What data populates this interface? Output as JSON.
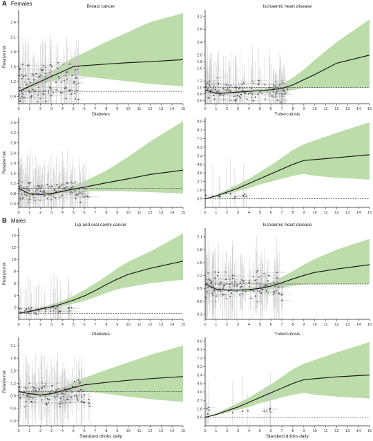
{
  "figure": {
    "sections": [
      {
        "letter": "A",
        "label": "Females"
      },
      {
        "letter": "B",
        "label": "Males"
      }
    ],
    "colors": {
      "ci_band": "#b5d8a0",
      "curve": "#1a1a1a",
      "reference_line": "#555555",
      "points": "#555555",
      "whiskers": "#c8c8c8"
    }
  },
  "chart_data": [
    {
      "type": "line",
      "title": "Breast cancer",
      "ylabel": "Relative risk",
      "xlabel": "",
      "xlim": [
        0,
        15
      ],
      "ylim": [
        0.75,
        2.65
      ],
      "xticks": [
        "0",
        "1",
        "2",
        "3",
        "4",
        "5",
        "6",
        "7",
        "8",
        "9",
        "10",
        "11",
        "12",
        "13",
        "14",
        "15"
      ],
      "yticks": [
        "0.9",
        "1.2",
        "1.5",
        "1.8",
        "2.1",
        "2.4"
      ],
      "ytick_values": [
        0.9,
        1.2,
        1.5,
        1.8,
        2.1,
        2.4
      ],
      "reference": 1.0,
      "curve_x": [
        0,
        1,
        2,
        3,
        4,
        5,
        6,
        8,
        10,
        12,
        15
      ],
      "curve_y": [
        1.0,
        1.1,
        1.2,
        1.3,
        1.4,
        1.5,
        1.52,
        1.55,
        1.58,
        1.6,
        1.64
      ],
      "ci_lower": [
        1.0,
        1.05,
        1.13,
        1.2,
        1.27,
        1.33,
        1.3,
        1.25,
        1.2,
        1.15,
        1.1
      ],
      "ci_upper": [
        1.0,
        1.15,
        1.27,
        1.4,
        1.55,
        1.68,
        1.78,
        2.0,
        2.2,
        2.4,
        2.58
      ],
      "scatter_cluster": {
        "x_max": 5.5,
        "y_center": 1.15,
        "y_spread": 0.45,
        "n": 130
      }
    },
    {
      "type": "line",
      "title": "Ischaemic heart disease",
      "ylabel": "",
      "xlabel": "",
      "xlim": [
        0,
        15
      ],
      "ylim": [
        0.5,
        3.4
      ],
      "xticks": [
        "0",
        "1",
        "2",
        "3",
        "4",
        "5",
        "6",
        "7",
        "8",
        "9",
        "10",
        "11",
        "12",
        "13",
        "14",
        "15"
      ],
      "yticks": [
        "0.6",
        "0.8",
        "1.0",
        "1.2",
        "1.6",
        "1.8",
        "2.0",
        "2.4",
        "2.8",
        "3.2"
      ],
      "ytick_values": [
        0.6,
        0.8,
        1.0,
        1.2,
        1.6,
        1.8,
        2.0,
        2.4,
        2.8,
        3.2
      ],
      "reference": 1.0,
      "curve_x": [
        0,
        1,
        2,
        3,
        4,
        5,
        6,
        7,
        8,
        9,
        10,
        12,
        15
      ],
      "curve_y": [
        0.92,
        0.82,
        0.83,
        0.86,
        0.88,
        0.9,
        0.93,
        0.97,
        1.08,
        1.24,
        1.4,
        1.75,
        2.0
      ],
      "ci_lower": [
        0.92,
        0.8,
        0.8,
        0.82,
        0.84,
        0.86,
        0.87,
        0.88,
        0.92,
        0.98,
        1.0,
        1.0,
        1.0
      ],
      "ci_upper": [
        0.92,
        0.85,
        0.87,
        0.9,
        0.93,
        0.96,
        1.0,
        1.1,
        1.3,
        1.55,
        1.85,
        2.4,
        3.1
      ],
      "scatter_cluster": {
        "x_max": 7.5,
        "y_center": 0.9,
        "y_spread": 0.35,
        "n": 150
      }
    },
    {
      "type": "line",
      "title": "Diabetes",
      "ylabel": "Relative risk",
      "xlabel": "",
      "xlim": [
        0,
        15
      ],
      "ylim": [
        0.25,
        3.8
      ],
      "xticks": [
        "0",
        "1",
        "2",
        "3",
        "4",
        "5",
        "6",
        "7",
        "8",
        "9",
        "10",
        "11",
        "12",
        "13",
        "14",
        "15"
      ],
      "yticks": [
        "0.4",
        "0.8",
        "1.2",
        "1.6",
        "2.0",
        "2.4",
        "2.8",
        "3.2",
        "3.6"
      ],
      "ytick_values": [
        0.4,
        0.8,
        1.2,
        1.6,
        2.0,
        2.4,
        2.8,
        3.2,
        3.6
      ],
      "reference": 1.0,
      "curve_x": [
        0,
        1,
        2,
        3,
        4,
        5,
        6,
        8,
        10,
        12,
        15
      ],
      "curve_y": [
        1.0,
        0.78,
        0.76,
        0.8,
        0.88,
        0.97,
        1.05,
        1.22,
        1.38,
        1.55,
        1.72
      ],
      "ci_lower": [
        1.0,
        0.72,
        0.7,
        0.74,
        0.8,
        0.85,
        0.88,
        0.9,
        0.88,
        0.85,
        0.8
      ],
      "ci_upper": [
        1.0,
        0.85,
        0.83,
        0.88,
        0.98,
        1.12,
        1.28,
        1.7,
        2.25,
        2.85,
        3.65
      ],
      "scatter_cluster": {
        "x_max": 6.5,
        "y_center": 0.85,
        "y_spread": 0.4,
        "n": 140
      }
    },
    {
      "type": "line",
      "title": "Tuberculosis",
      "ylabel": "",
      "xlabel": "",
      "xlim": [
        0,
        15
      ],
      "ylim": [
        0,
        9.4
      ],
      "xticks": [
        "0",
        "1",
        "2",
        "3",
        "4",
        "5",
        "6",
        "7",
        "8",
        "9",
        "10",
        "11",
        "12",
        "13",
        "14",
        "15"
      ],
      "yticks": [
        "0.9",
        "1.8",
        "2.7",
        "3.6",
        "4.5",
        "5.4",
        "6.3",
        "7.2",
        "8.1",
        "9.0"
      ],
      "ytick_values": [
        0.9,
        1.8,
        2.7,
        3.6,
        4.5,
        5.4,
        6.3,
        7.2,
        8.1,
        9.0
      ],
      "reference": 0.9,
      "curve_x": [
        0,
        1,
        2,
        3,
        4,
        5,
        6,
        7,
        8,
        9,
        10,
        12,
        15
      ],
      "curve_y": [
        0.9,
        1.2,
        1.6,
        2.0,
        2.5,
        3.0,
        3.5,
        4.0,
        4.5,
        4.9,
        5.0,
        5.2,
        5.5
      ],
      "ci_lower": [
        0.9,
        1.1,
        1.4,
        1.7,
        2.0,
        2.4,
        2.7,
        3.0,
        3.3,
        3.5,
        3.3,
        3.1,
        2.9
      ],
      "ci_upper": [
        0.9,
        1.3,
        1.85,
        2.4,
        3.0,
        3.7,
        4.4,
        5.2,
        6.0,
        6.6,
        7.0,
        7.8,
        8.9
      ],
      "scatter_cluster": {
        "x_max": 4.0,
        "y_center": 1.2,
        "y_spread": 0.4,
        "n": 12
      }
    },
    {
      "type": "line",
      "title": "Lip and oral cavity cancer",
      "ylabel": "Relative risk",
      "xlabel": "",
      "xlim": [
        0,
        15
      ],
      "ylim": [
        0,
        15.2
      ],
      "xticks": [
        "0",
        "1",
        "2",
        "3",
        "4",
        "5",
        "6",
        "7",
        "8",
        "9",
        "10",
        "11",
        "12",
        "13",
        "14",
        "15"
      ],
      "yticks": [
        "2",
        "4",
        "6",
        "8",
        "10",
        "12",
        "14"
      ],
      "ytick_values": [
        2,
        4,
        6,
        8,
        10,
        12,
        14
      ],
      "reference": 1.0,
      "curve_x": [
        0,
        1,
        2,
        3,
        4,
        5,
        6,
        7,
        8,
        9,
        10,
        12,
        15
      ],
      "curve_y": [
        1.0,
        1.3,
        1.7,
        2.1,
        2.6,
        3.2,
        3.9,
        4.8,
        5.8,
        6.7,
        7.5,
        8.5,
        9.7
      ],
      "ci_lower": [
        1.0,
        1.2,
        1.5,
        1.8,
        2.2,
        2.6,
        3.1,
        3.7,
        4.4,
        5.0,
        5.4,
        6.0,
        6.6
      ],
      "ci_upper": [
        1.0,
        1.45,
        1.95,
        2.5,
        3.1,
        3.9,
        4.9,
        6.0,
        7.2,
        8.5,
        9.6,
        11.3,
        14.3
      ],
      "scatter_cluster": {
        "x_max": 5.0,
        "y_center": 1.6,
        "y_spread": 0.7,
        "n": 45
      }
    },
    {
      "type": "line",
      "title": "Ischaemic heart disease",
      "ylabel": "",
      "xlabel": "",
      "xlim": [
        0,
        15
      ],
      "ylim": [
        0.18,
        2.3
      ],
      "xticks": [
        "0",
        "1",
        "2",
        "3",
        "4",
        "5",
        "6",
        "7",
        "8",
        "9",
        "10",
        "11",
        "12",
        "13",
        "14",
        "15"
      ],
      "yticks": [
        "0.3",
        "0.6",
        "0.9",
        "1.2",
        "1.5",
        "1.8",
        "2.1"
      ],
      "ytick_values": [
        0.3,
        0.6,
        0.9,
        1.2,
        1.5,
        1.8,
        2.1
      ],
      "reference": 1.0,
      "curve_x": [
        0,
        1,
        2,
        3,
        4,
        5,
        6,
        7,
        8,
        9,
        10,
        12,
        15
      ],
      "curve_y": [
        1.0,
        0.88,
        0.86,
        0.86,
        0.87,
        0.9,
        0.95,
        1.03,
        1.12,
        1.2,
        1.27,
        1.35,
        1.45
      ],
      "ci_lower": [
        1.0,
        0.86,
        0.84,
        0.84,
        0.84,
        0.86,
        0.88,
        0.92,
        0.96,
        0.99,
        1.0,
        1.0,
        1.0
      ],
      "ci_upper": [
        1.0,
        0.9,
        0.89,
        0.89,
        0.91,
        0.96,
        1.04,
        1.16,
        1.3,
        1.45,
        1.58,
        1.8,
        2.05
      ],
      "scatter_cluster": {
        "x_max": 7.0,
        "y_center": 0.95,
        "y_spread": 0.35,
        "n": 150
      }
    },
    {
      "type": "line",
      "title": "Diabetes",
      "ylabel": "Relative risk",
      "xlabel": "Standard drinks daily",
      "xlim": [
        0,
        15
      ],
      "ylim": [
        0.18,
        2.3
      ],
      "xticks": [
        "0",
        "1",
        "2",
        "3",
        "4",
        "5",
        "6",
        "7",
        "8",
        "9",
        "10",
        "11",
        "12",
        "13",
        "14",
        "15"
      ],
      "yticks": [
        "0.3",
        "0.6",
        "0.9",
        "1.2",
        "1.5",
        "1.8",
        "2.1"
      ],
      "ytick_values": [
        0.3,
        0.6,
        0.9,
        1.2,
        1.5,
        1.8,
        2.1
      ],
      "reference": 1.0,
      "curve_x": [
        0,
        1,
        2,
        3,
        4,
        5,
        6,
        8,
        10,
        12,
        15
      ],
      "curve_y": [
        1.0,
        0.95,
        0.92,
        0.95,
        1.02,
        1.1,
        1.16,
        1.22,
        1.27,
        1.31,
        1.36
      ],
      "ci_lower": [
        1.0,
        0.9,
        0.87,
        0.9,
        0.95,
        0.99,
        1.0,
        0.95,
        0.88,
        0.82,
        0.75
      ],
      "ci_upper": [
        1.0,
        1.0,
        0.98,
        1.02,
        1.1,
        1.22,
        1.33,
        1.52,
        1.7,
        1.88,
        2.1
      ],
      "scatter_cluster": {
        "x_max": 6.5,
        "y_center": 0.95,
        "y_spread": 0.35,
        "n": 140
      }
    },
    {
      "type": "line",
      "title": "Tuberculosis",
      "ylabel": "",
      "xlabel": "Standard drinks daily",
      "xlim": [
        0,
        15
      ],
      "ylim": [
        0,
        9.4
      ],
      "xticks": [
        "0",
        "1",
        "2",
        "3",
        "4",
        "5",
        "6",
        "7",
        "8",
        "9",
        "10",
        "11",
        "12",
        "13",
        "14",
        "15"
      ],
      "yticks": [
        "0.9",
        "1.8",
        "2.7",
        "3.6",
        "4.5",
        "5.4",
        "6.3",
        "7.2",
        "8.1",
        "9.0"
      ],
      "ytick_values": [
        0.9,
        1.8,
        2.7,
        3.6,
        4.5,
        5.4,
        6.3,
        7.2,
        8.1,
        9.0
      ],
      "reference": 0.9,
      "curve_x": [
        0,
        1,
        2,
        3,
        4,
        5,
        6,
        7,
        8,
        9,
        10,
        12,
        15
      ],
      "curve_y": [
        0.9,
        1.2,
        1.6,
        2.0,
        2.5,
        3.0,
        3.5,
        4.0,
        4.5,
        4.9,
        5.0,
        5.2,
        5.4
      ],
      "ci_lower": [
        0.9,
        1.1,
        1.4,
        1.7,
        2.0,
        2.4,
        2.7,
        3.0,
        3.3,
        3.5,
        3.3,
        3.1,
        2.9
      ],
      "ci_upper": [
        0.9,
        1.3,
        1.85,
        2.4,
        3.0,
        3.7,
        4.4,
        5.2,
        6.0,
        6.6,
        7.0,
        7.8,
        8.9
      ],
      "scatter_cluster": {
        "x_max": 6.5,
        "y_center": 1.5,
        "y_spread": 0.6,
        "n": 14
      }
    }
  ]
}
